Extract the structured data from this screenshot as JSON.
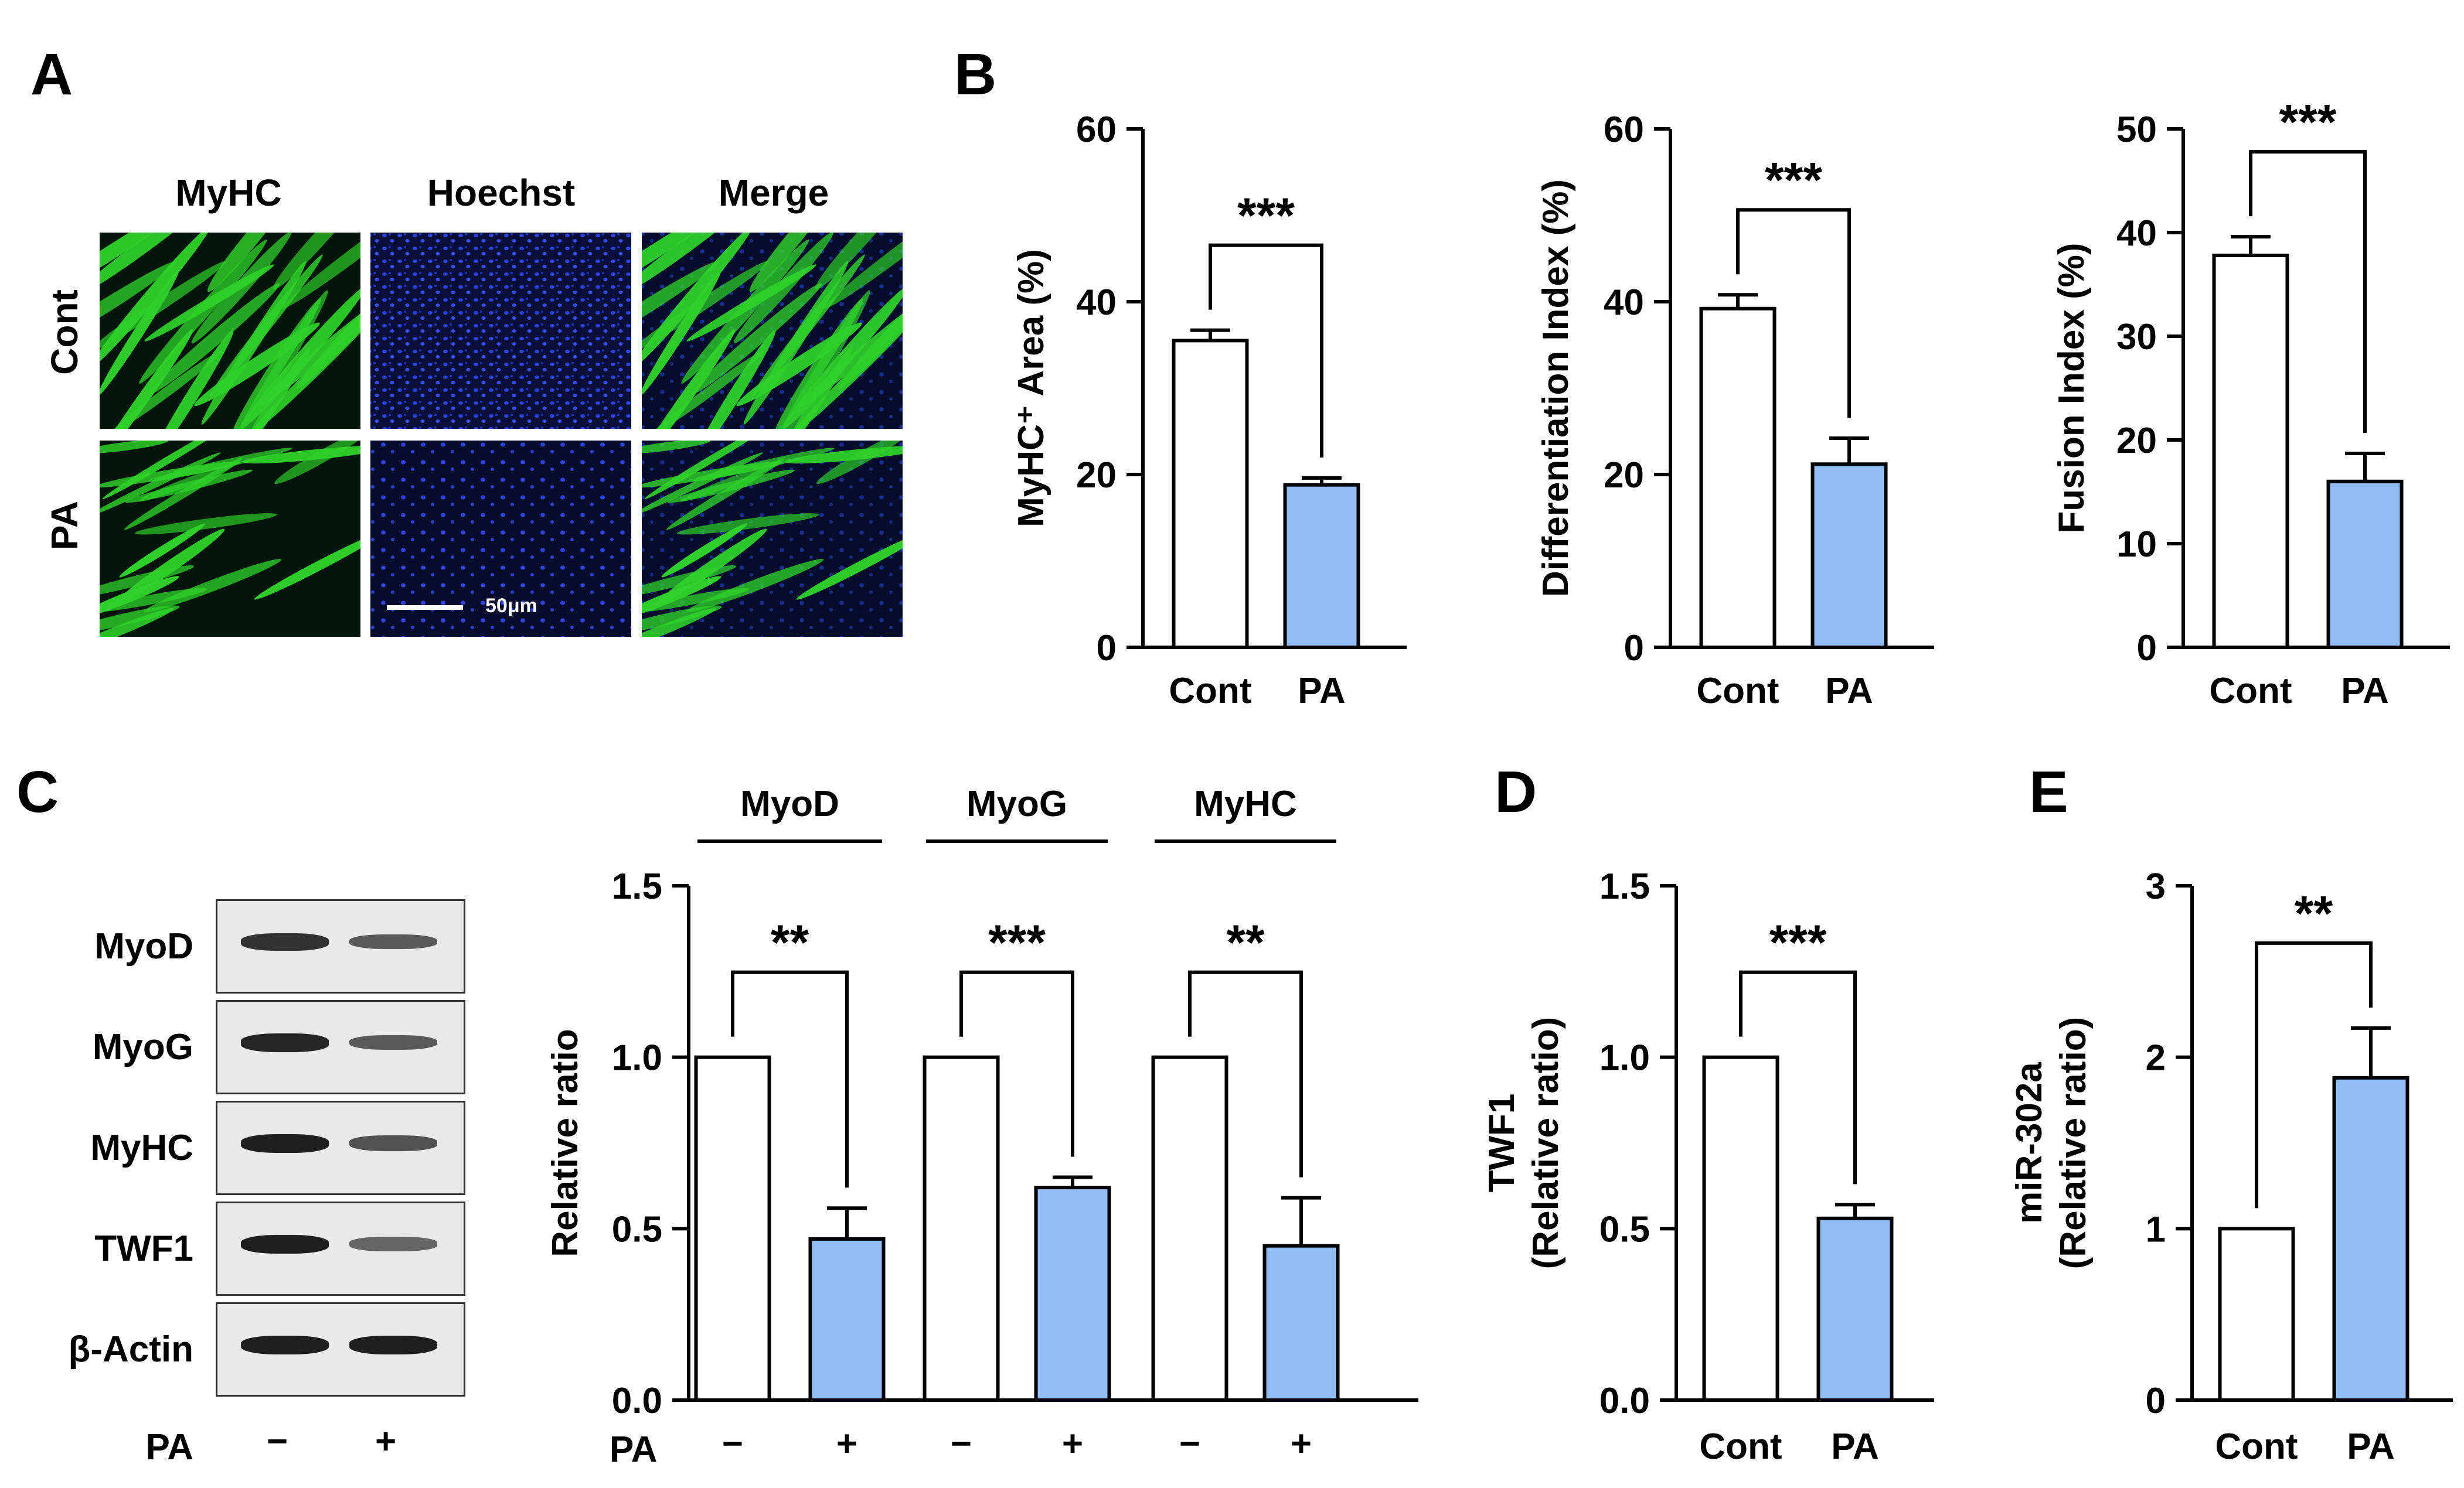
{
  "panel_labels": {
    "a": "A",
    "b": "B",
    "c": "C",
    "d": "D",
    "e": "E"
  },
  "micrograph": {
    "columns": [
      "MyHC",
      "Hoechst",
      "Merge"
    ],
    "rows": [
      "Cont",
      "PA"
    ],
    "scale_bar_label": "50μm",
    "colors": {
      "myhc": "#2fd12a",
      "hoechst": "#1a2fd6",
      "background": "#03140a"
    }
  },
  "western_blot": {
    "proteins": [
      "MyoD",
      "MyoG",
      "MyHC",
      "TWF1",
      "β-Actin"
    ],
    "treatment_label": "PA",
    "lanes": [
      "−",
      "+"
    ],
    "band_intensity": {
      "MyoD": [
        0.85,
        0.55
      ],
      "MyoG": [
        0.95,
        0.55
      ],
      "MyHC": [
        1.0,
        0.6
      ],
      "TWF1": [
        1.0,
        0.45
      ],
      "β-Actin": [
        1.0,
        1.0
      ]
    }
  },
  "colors": {
    "control_bar": "#ffffff",
    "pa_bar": "#90bdf5",
    "axis": "#000000"
  },
  "chart_data": [
    {
      "id": "B1",
      "type": "bar",
      "categories": [
        "Cont",
        "PA"
      ],
      "values": [
        35.5,
        18.8
      ],
      "errors": [
        1.2,
        0.8
      ],
      "ylabel": "MyHC⁺ Area (%)",
      "ylim": [
        0,
        60
      ],
      "yticks": [
        0,
        20,
        40,
        60
      ],
      "significance": "***"
    },
    {
      "id": "B2",
      "type": "bar",
      "categories": [
        "Cont",
        "PA"
      ],
      "values": [
        39.2,
        21.2
      ],
      "errors": [
        1.6,
        3.0
      ],
      "ylabel": "Differentiation Index (%)",
      "ylim": [
        0,
        60
      ],
      "yticks": [
        0,
        20,
        40,
        60
      ],
      "significance": "***"
    },
    {
      "id": "B3",
      "type": "bar",
      "categories": [
        "Cont",
        "PA"
      ],
      "values": [
        37.8,
        16.0
      ],
      "errors": [
        1.8,
        2.7
      ],
      "ylabel": "Fusion Index (%)",
      "ylim": [
        0,
        50
      ],
      "yticks": [
        0,
        10,
        20,
        30,
        40,
        50
      ],
      "significance": "***"
    },
    {
      "id": "C",
      "type": "bar",
      "groups": [
        "MyoD",
        "MyoG",
        "MyHC"
      ],
      "lane_labels": [
        "−",
        "+",
        "−",
        "+",
        "−",
        "+"
      ],
      "treatment_label": "PA",
      "values": [
        1.0,
        0.47,
        1.0,
        0.62,
        1.0,
        0.45
      ],
      "errors": [
        0,
        0.09,
        0,
        0.03,
        0,
        0.14
      ],
      "ylabel": "Relative ratio",
      "ylim": [
        0,
        1.5
      ],
      "yticks": [
        "0.0",
        "0.5",
        "1.0",
        "1.5"
      ],
      "significance": [
        "**",
        "***",
        "**"
      ]
    },
    {
      "id": "D",
      "type": "bar",
      "categories": [
        "Cont",
        "PA"
      ],
      "values": [
        1.0,
        0.53
      ],
      "errors": [
        0,
        0.04
      ],
      "ylabel": [
        "TWF1",
        "(Relative ratio)"
      ],
      "ylim": [
        0,
        1.5
      ],
      "yticks": [
        "0.0",
        "0.5",
        "1.0",
        "1.5"
      ],
      "significance": "***"
    },
    {
      "id": "E",
      "type": "bar",
      "categories": [
        "Cont",
        "PA"
      ],
      "values": [
        1.0,
        1.88
      ],
      "errors": [
        0,
        0.29
      ],
      "ylabel": [
        "miR-302a",
        "(Relative ratio)"
      ],
      "ylim": [
        0,
        3
      ],
      "yticks": [
        "0",
        "1",
        "2",
        "3"
      ],
      "significance": "**"
    }
  ]
}
